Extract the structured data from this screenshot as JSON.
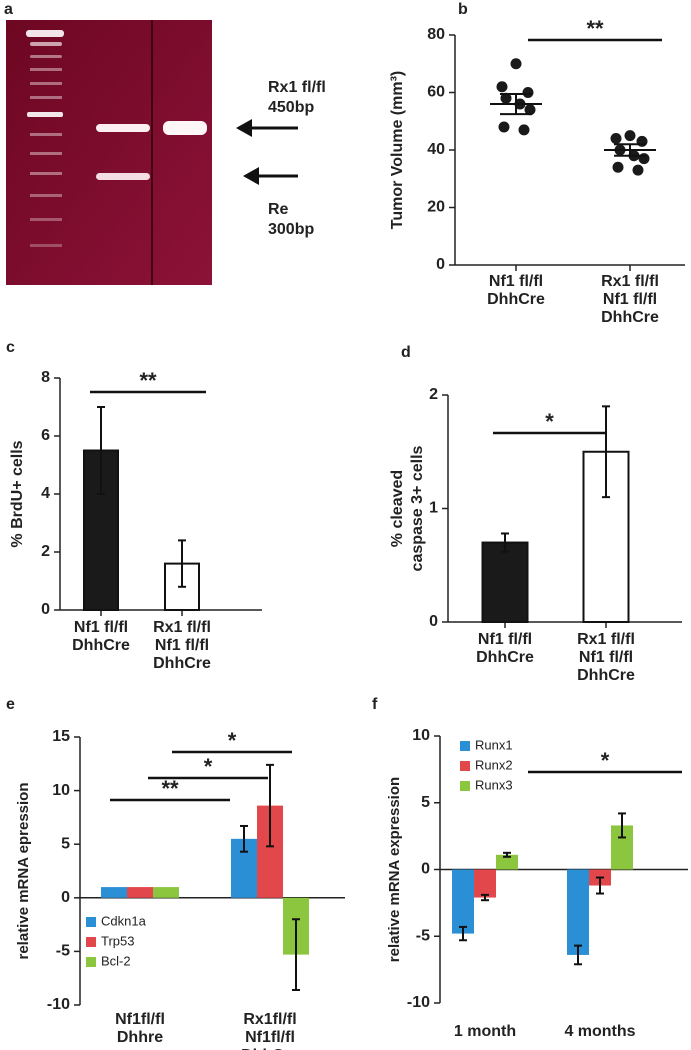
{
  "gel": {
    "label": "a",
    "annotations": [
      [
        "Rx1 fl/fl",
        "450bp"
      ],
      [
        "Re",
        "300bp"
      ]
    ]
  },
  "chart_data": [
    {
      "type": "scatter",
      "label": "b",
      "ylabel": [
        "Tumor Volume (mm³)"
      ],
      "categories": [
        [
          "Nf1 fl/fl",
          "DhhCre"
        ],
        [
          "Rx1 fl/fl",
          "Nf1 fl/fl",
          "DhhCre"
        ]
      ],
      "values": [
        [
          70,
          62,
          60,
          58,
          56,
          54,
          48,
          47
        ],
        [
          45,
          44,
          43,
          40,
          38,
          37,
          34,
          33
        ]
      ],
      "mean": [
        56,
        40
      ],
      "sem": [
        3.5,
        2
      ],
      "color": "#1a1a1a",
      "ylim": [
        0,
        80
      ],
      "yticks": [
        0,
        20,
        40,
        60,
        80
      ],
      "annotations": [
        "**"
      ]
    },
    {
      "type": "bar",
      "label": "c",
      "ylabel": [
        "% BrdU+ cells"
      ],
      "categories": [
        [
          "Nf1 fl/fl",
          "DhhCre"
        ],
        [
          "Rx1 fl/fl",
          "Nf1 fl/fl",
          "DhhCre"
        ]
      ],
      "values": [
        5.5,
        1.6
      ],
      "errors": [
        1.5,
        0.8
      ],
      "colors": [
        "#1a1a1a",
        "#ffffff"
      ],
      "ylim": [
        0,
        8
      ],
      "yticks": [
        0,
        2,
        4,
        6,
        8
      ],
      "annotations": [
        "**"
      ]
    },
    {
      "type": "bar",
      "label": "d",
      "ylabel": [
        "% cleaved",
        "caspase 3+ cells"
      ],
      "categories": [
        [
          "Nf1 fl/fl",
          "DhhCre"
        ],
        [
          "Rx1 fl/fl",
          "Nf1 fl/fl",
          "DhhCre"
        ]
      ],
      "values": [
        0.7,
        1.5
      ],
      "errors": [
        0.08,
        0.4
      ],
      "colors": [
        "#1a1a1a",
        "#ffffff"
      ],
      "ylim": [
        0,
        2
      ],
      "yticks": [
        0,
        1,
        2
      ],
      "annotations": [
        "*"
      ]
    },
    {
      "type": "bar",
      "label": "e",
      "ylabel": [
        "relative mRNA epression"
      ],
      "categories": [
        [
          "Nf1fl/fl",
          "Dhhre"
        ],
        [
          "Rx1fl/fl",
          "Nf1fl/fl",
          "DhhCre"
        ]
      ],
      "series": [
        {
          "name": "Cdkn1a",
          "color": "#2b8fd6",
          "values": [
            1,
            5.5
          ],
          "errors": [
            null,
            1.2
          ]
        },
        {
          "name": "Trp53",
          "color": "#e2474b",
          "values": [
            1,
            8.6
          ],
          "errors": [
            null,
            3.8
          ]
        },
        {
          "name": "Bcl-2",
          "color": "#8cc63f",
          "values": [
            1,
            -5.3
          ],
          "errors": [
            null,
            3.3
          ]
        }
      ],
      "ylim": [
        -10,
        15
      ],
      "yticks": [
        -10,
        -5,
        0,
        5,
        10,
        15
      ],
      "annotations": [
        "**",
        "*",
        "*"
      ]
    },
    {
      "type": "bar",
      "label": "f",
      "ylabel": [
        "relative mRNA expression"
      ],
      "categories": [
        [
          "1 month"
        ],
        [
          "4 months"
        ]
      ],
      "series": [
        {
          "name": "Runx1",
          "color": "#2b8fd6",
          "values": [
            -4.8,
            -6.4
          ],
          "errors": [
            0.5,
            0.7
          ]
        },
        {
          "name": "Runx2",
          "color": "#e2474b",
          "values": [
            -2.1,
            -1.2
          ],
          "errors": [
            0.2,
            0.6
          ]
        },
        {
          "name": "Runx3",
          "color": "#8cc63f",
          "values": [
            1.1,
            3.3
          ],
          "errors": [
            0.15,
            0.9
          ]
        }
      ],
      "ylim": [
        -10,
        10
      ],
      "yticks": [
        -10,
        -5,
        0,
        5,
        10
      ],
      "annotations": [
        "*"
      ]
    }
  ]
}
